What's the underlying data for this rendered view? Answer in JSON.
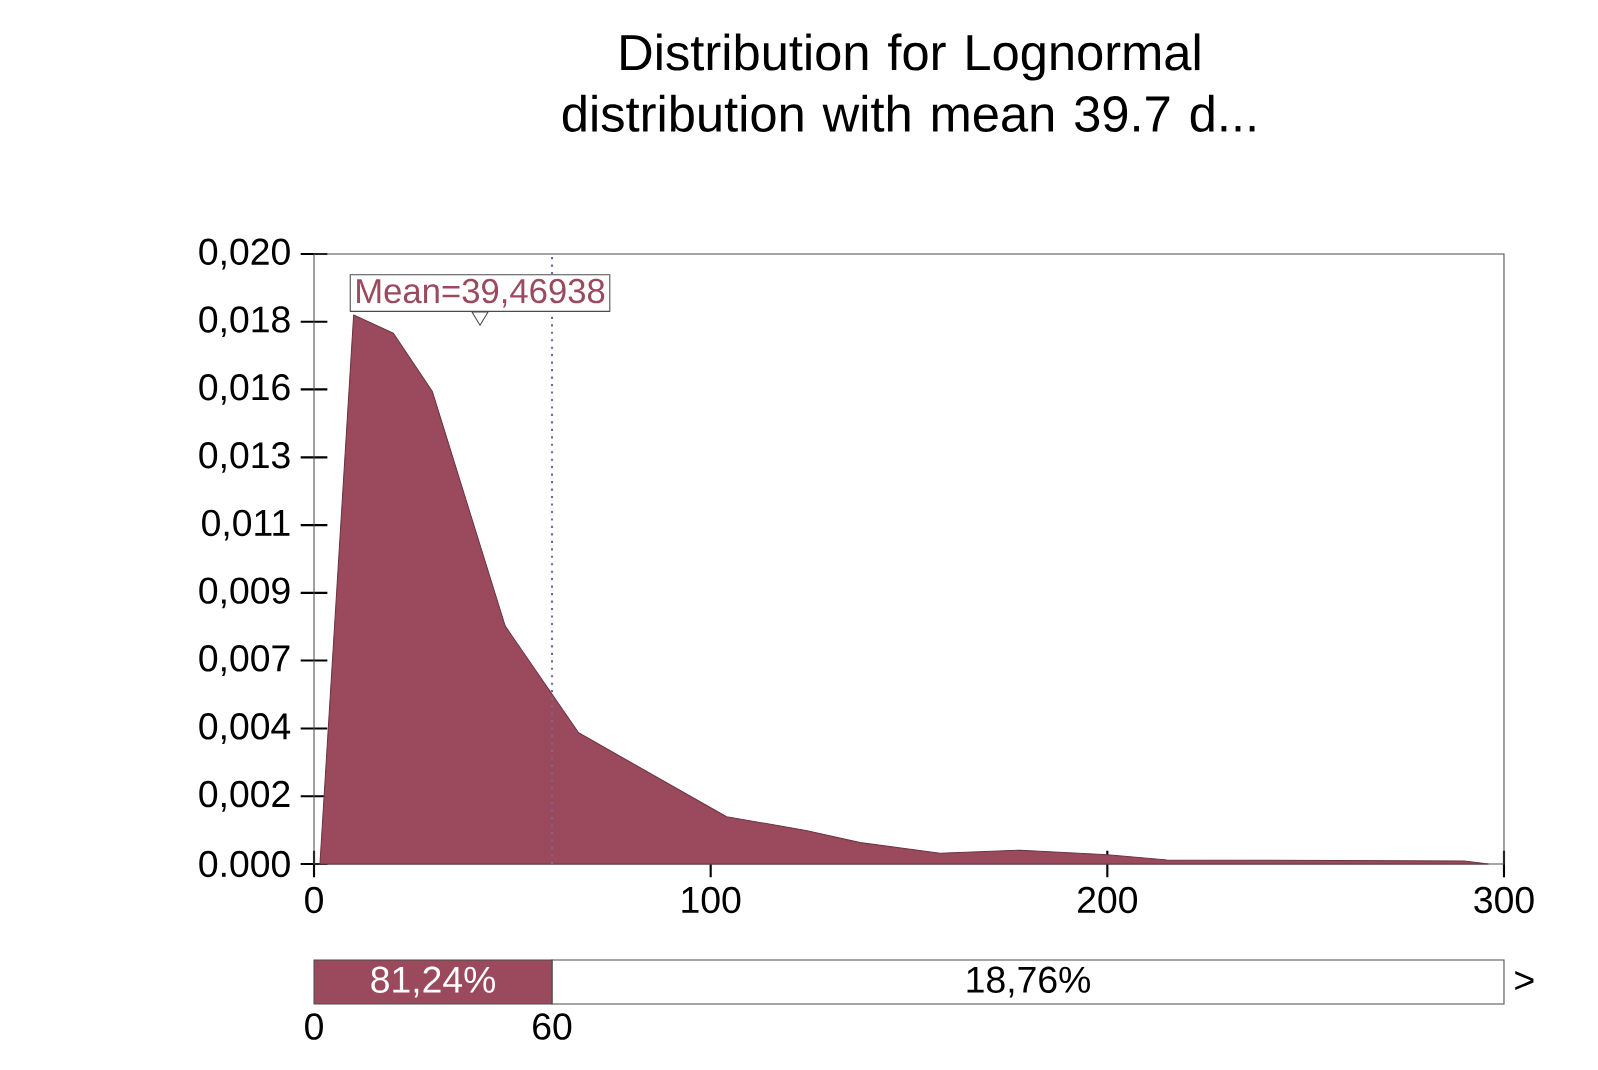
{
  "chart_data": [
    {
      "type": "area",
      "title": "Distribution for Lognormal distribution with mean 39.7 d...",
      "x": [
        1.5,
        10,
        20,
        29.8,
        48.2,
        66.7,
        104,
        124,
        137.7,
        157.8,
        178,
        200,
        215,
        290,
        296
      ],
      "series": [
        {
          "color": "#9b4a5e",
          "values": [
            0,
            0.018,
            0.0174,
            0.0155,
            0.0078,
            0.0043,
            0.00155,
            0.0011,
            0.0007,
            0.00035,
            0.00045,
            0.0003,
            0.00013,
            0.0001,
            0
          ]
        }
      ],
      "xlim": [
        0,
        300
      ],
      "xticks": [
        0,
        100,
        200,
        300
      ],
      "ylim": [
        0,
        0.02
      ],
      "yticks": [
        {
          "value": 0,
          "label": "0.000"
        },
        {
          "value": 0.00222,
          "label": "0,002"
        },
        {
          "value": 0.00444,
          "label": "0,004"
        },
        {
          "value": 0.00667,
          "label": "0,007"
        },
        {
          "value": 0.00889,
          "label": "0,009"
        },
        {
          "value": 0.01111,
          "label": "0,011"
        },
        {
          "value": 0.01333,
          "label": "0,013"
        },
        {
          "value": 0.01556,
          "label": "0,016"
        },
        {
          "value": 0.01778,
          "label": "0,018"
        },
        {
          "value": 0.02,
          "label": "0,020"
        }
      ],
      "ref_lines": [
        {
          "axis": "x",
          "value": 60,
          "color": "#7a6a8a",
          "line_style": "dotted"
        }
      ],
      "annotations": [
        "Mean=39,46938"
      ],
      "grid": false
    },
    {
      "type": "bar",
      "orientation": "horizontal",
      "stacked": true,
      "categories": [
        null
      ],
      "series": [
        {
          "color": "#9b4a5e",
          "values": [
            60
          ]
        },
        {
          "color": "#ffffff",
          "values": [
            240
          ]
        }
      ],
      "xlim": [
        0,
        300
      ],
      "xticks": [
        0,
        60
      ],
      "annotations": [
        "81,24%",
        "18,76%",
        ">"
      ]
    }
  ]
}
